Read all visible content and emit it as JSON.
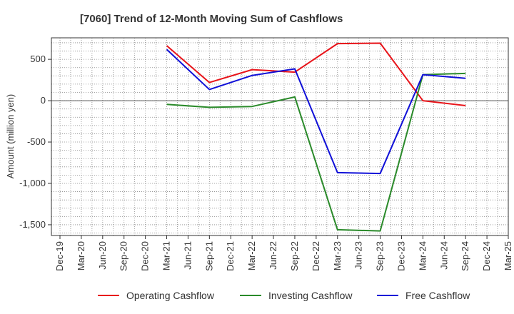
{
  "chart_data": {
    "type": "line",
    "title": "[7060]  Trend of 12-Month Moving Sum of Cashflows",
    "ylabel": "Amount (million yen)",
    "xlabel": "",
    "ylim": [
      -1630,
      760
    ],
    "yticks": [
      500,
      0,
      -500,
      -1000,
      -1500
    ],
    "ytick_labels": [
      "500",
      "0",
      "-500",
      "-1,000",
      "-1,500"
    ],
    "categories": [
      "Dec-19",
      "Mar-20",
      "Jun-20",
      "Sep-20",
      "Dec-20",
      "Mar-21",
      "Jun-21",
      "Sep-21",
      "Dec-21",
      "Mar-22",
      "Jun-22",
      "Sep-22",
      "Dec-22",
      "Mar-23",
      "Jun-23",
      "Sep-23",
      "Dec-23",
      "Mar-24",
      "Jun-24",
      "Sep-24",
      "Dec-24",
      "Mar-25"
    ],
    "grid": true,
    "legend_position": "bottom",
    "series": [
      {
        "name": "Operating Cashflow",
        "color": "#e8141a",
        "points": [
          [
            5,
            665
          ],
          [
            7,
            220
          ],
          [
            9,
            375
          ],
          [
            11,
            345
          ],
          [
            13,
            690
          ],
          [
            15,
            695
          ],
          [
            17,
            0
          ],
          [
            19,
            -60
          ]
        ]
      },
      {
        "name": "Investing Cashflow",
        "color": "#2a8a2a",
        "points": [
          [
            5,
            -45
          ],
          [
            7,
            -80
          ],
          [
            9,
            -70
          ],
          [
            11,
            45
          ],
          [
            13,
            -1560
          ],
          [
            15,
            -1575
          ],
          [
            17,
            315
          ],
          [
            19,
            330
          ]
        ]
      },
      {
        "name": "Free Cashflow",
        "color": "#1010d8",
        "points": [
          [
            5,
            620
          ],
          [
            7,
            135
          ],
          [
            9,
            305
          ],
          [
            11,
            385
          ],
          [
            13,
            -870
          ],
          [
            15,
            -880
          ],
          [
            17,
            315
          ],
          [
            19,
            270
          ]
        ]
      }
    ]
  }
}
